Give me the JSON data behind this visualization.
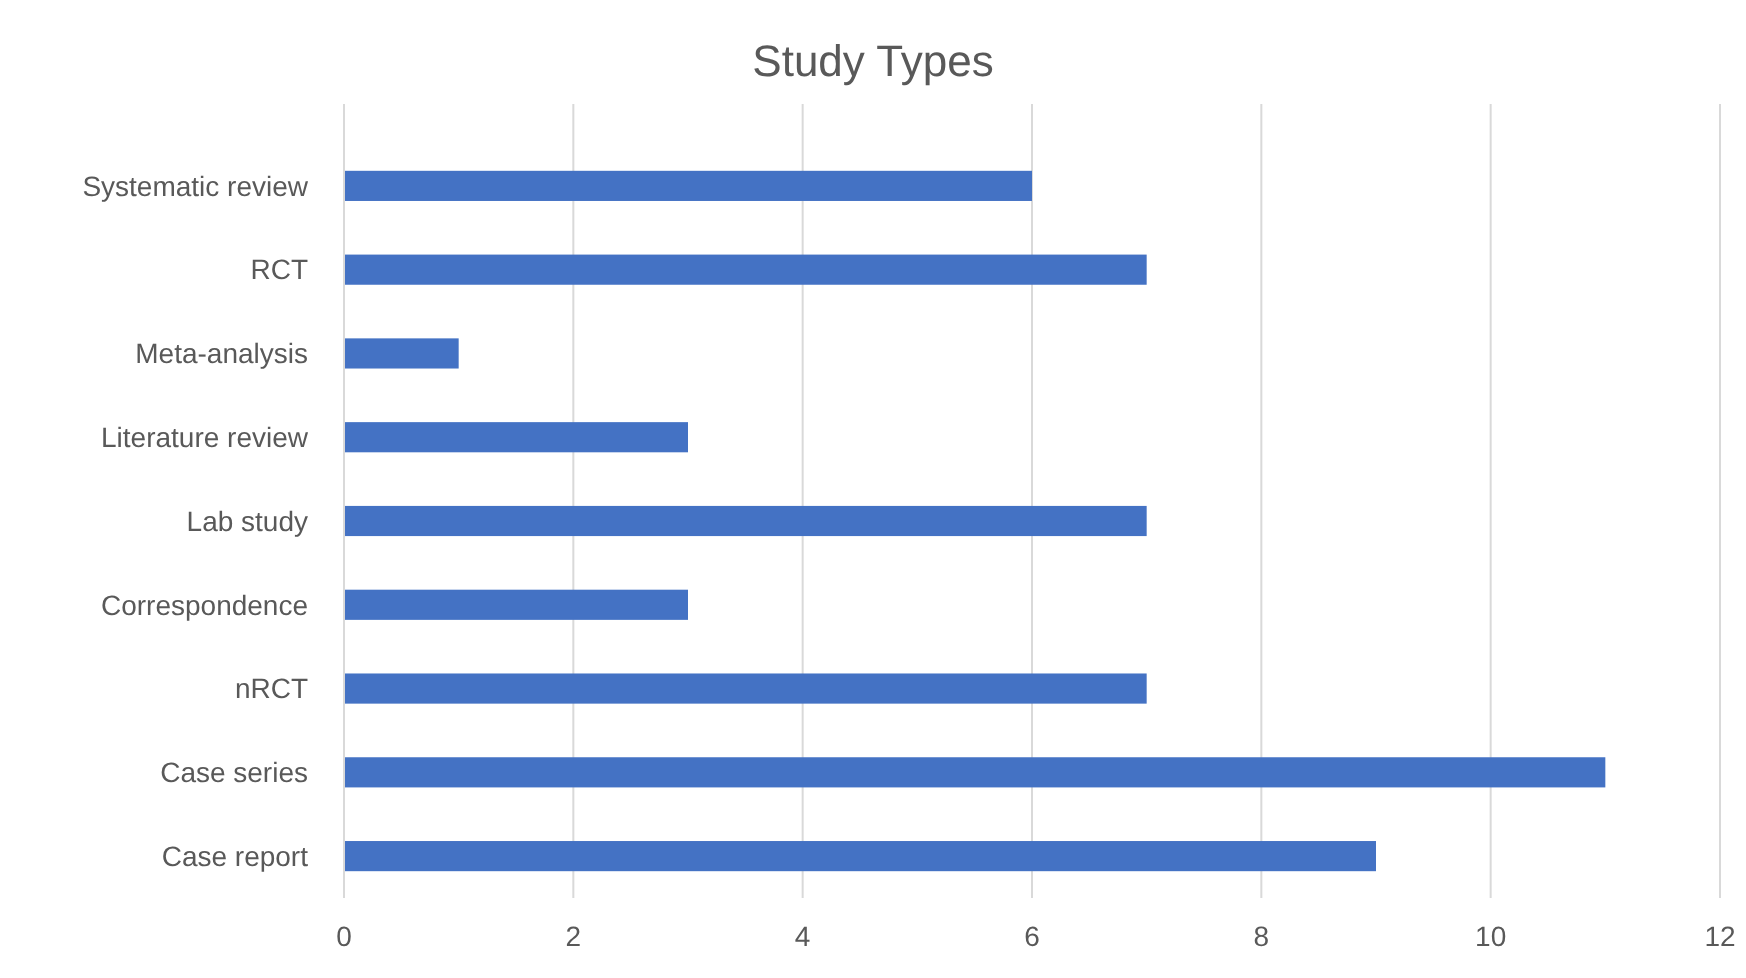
{
  "chart_data": {
    "type": "bar",
    "orientation": "horizontal",
    "title": "Study Types",
    "categories": [
      "Systematic review",
      "RCT",
      "Meta-analysis",
      "Literature review",
      "Lab study",
      "Correspondence",
      "nRCT",
      "Case series",
      "Case report"
    ],
    "values": [
      6,
      7,
      1,
      3,
      7,
      3,
      7,
      11,
      9
    ],
    "color": "#4472c4",
    "xlim": [
      0,
      12
    ],
    "xticks": [
      0,
      2,
      4,
      6,
      8,
      10,
      12
    ],
    "grid": "x"
  }
}
